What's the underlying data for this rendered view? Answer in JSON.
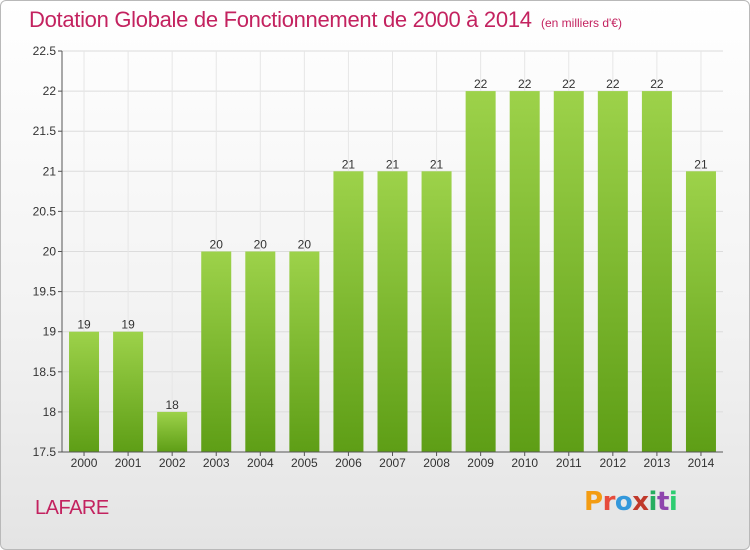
{
  "chart_data": {
    "type": "bar",
    "title": "Dotation Globale de Fonctionnement de 2000 à 2014",
    "subtitle": "(en milliers d'€)",
    "categories": [
      "2000",
      "2001",
      "2002",
      "2003",
      "2004",
      "2005",
      "2006",
      "2007",
      "2008",
      "2009",
      "2010",
      "2011",
      "2012",
      "2013",
      "2014"
    ],
    "values": [
      19,
      19,
      18,
      20,
      20,
      20,
      21,
      21,
      21,
      22,
      22,
      22,
      22,
      22,
      21
    ],
    "ylim": [
      17.5,
      22.5
    ],
    "yticks": [
      "17.5",
      "18",
      "18.5",
      "19",
      "19.5",
      "20",
      "20.5",
      "21",
      "21.5",
      "22",
      "22.5"
    ],
    "grid": true,
    "xlabel": "",
    "ylabel": ""
  },
  "commune": "LAFARE",
  "logo_letters": [
    "P",
    "r",
    "o",
    "x",
    "i",
    "t",
    "i"
  ],
  "colors": {
    "bar_top": "#9dd24a",
    "bar_bottom": "#5e9e16",
    "title": "#c3225f"
  }
}
